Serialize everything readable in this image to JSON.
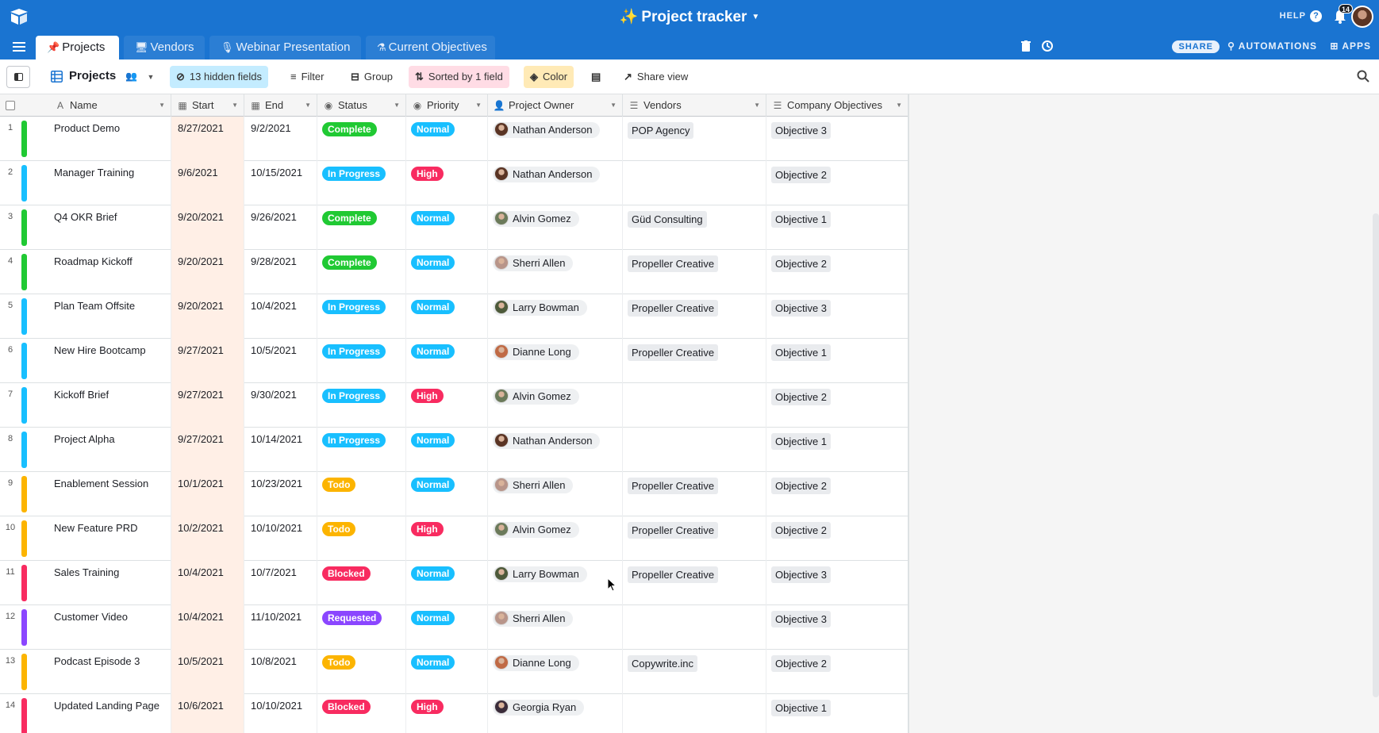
{
  "app": {
    "title": "Project tracker",
    "help_label": "HELP",
    "notification_count": "14"
  },
  "tabs": [
    {
      "label": "Projects",
      "icon": "pin-icon"
    },
    {
      "label": "Vendors",
      "icon": "computer-icon"
    },
    {
      "label": "Webinar Presentation",
      "icon": "microphone-icon"
    },
    {
      "label": "Current Objectives",
      "icon": "flask-icon"
    }
  ],
  "tabbar_right": {
    "share_label": "SHARE",
    "automations_label": "AUTOMATIONS",
    "apps_label": "APPS"
  },
  "viewbar": {
    "view_name": "Projects",
    "hidden_fields": "13 hidden fields",
    "filter": "Filter",
    "group": "Group",
    "sorted": "Sorted by 1 field",
    "color": "Color",
    "share_view": "Share view"
  },
  "colors": {
    "accent": "#1a74d1",
    "complete": "#20c933",
    "in_progress": "#18bfff",
    "todo": "#fcb400",
    "blocked": "#f82b60",
    "requested": "#8b46ff",
    "priority_normal": "#18bfff",
    "priority_high": "#f82b60"
  },
  "columns": [
    "Name",
    "Start",
    "End",
    "Status",
    "Priority",
    "Project Owner",
    "Vendors",
    "Company Objectives"
  ],
  "rows": [
    {
      "num": "1",
      "bar": "#20c933",
      "name": "Product Demo",
      "start": "8/27/2021",
      "end": "9/2/2021",
      "status": "Complete",
      "status_color": "#20c933",
      "priority": "Normal",
      "priority_color": "#18bfff",
      "owner": "Nathan Anderson",
      "avatar": "#5a3424",
      "vendor": "POP Agency",
      "objective": "Objective 3"
    },
    {
      "num": "2",
      "bar": "#18bfff",
      "name": "Manager Training",
      "start": "9/6/2021",
      "end": "10/15/2021",
      "status": "In Progress",
      "status_color": "#18bfff",
      "priority": "High",
      "priority_color": "#f82b60",
      "owner": "Nathan Anderson",
      "avatar": "#5a3424",
      "vendor": "",
      "objective": "Objective 2"
    },
    {
      "num": "3",
      "bar": "#20c933",
      "name": "Q4 OKR Brief",
      "start": "9/20/2021",
      "end": "9/26/2021",
      "status": "Complete",
      "status_color": "#20c933",
      "priority": "Normal",
      "priority_color": "#18bfff",
      "owner": "Alvin Gomez",
      "avatar": "#6b7a5a",
      "vendor": "Güd Consulting",
      "objective": "Objective 1"
    },
    {
      "num": "4",
      "bar": "#20c933",
      "name": "Roadmap Kickoff",
      "start": "9/20/2021",
      "end": "9/28/2021",
      "status": "Complete",
      "status_color": "#20c933",
      "priority": "Normal",
      "priority_color": "#18bfff",
      "owner": "Sherri Allen",
      "avatar": "#b8958a",
      "vendor": "Propeller Creative",
      "objective": "Objective 2"
    },
    {
      "num": "5",
      "bar": "#18bfff",
      "name": "Plan Team Offsite",
      "start": "9/20/2021",
      "end": "10/4/2021",
      "status": "In Progress",
      "status_color": "#18bfff",
      "priority": "Normal",
      "priority_color": "#18bfff",
      "owner": "Larry Bowman",
      "avatar": "#4d5a3a",
      "vendor": "Propeller Creative",
      "objective": "Objective 3"
    },
    {
      "num": "6",
      "bar": "#18bfff",
      "name": "New Hire Bootcamp",
      "start": "9/27/2021",
      "end": "10/5/2021",
      "status": "In Progress",
      "status_color": "#18bfff",
      "priority": "Normal",
      "priority_color": "#18bfff",
      "owner": "Dianne Long",
      "avatar": "#c06a45",
      "vendor": "Propeller Creative",
      "objective": "Objective 1"
    },
    {
      "num": "7",
      "bar": "#18bfff",
      "name": "Kickoff Brief",
      "start": "9/27/2021",
      "end": "9/30/2021",
      "status": "In Progress",
      "status_color": "#18bfff",
      "priority": "High",
      "priority_color": "#f82b60",
      "owner": "Alvin Gomez",
      "avatar": "#6b7a5a",
      "vendor": "",
      "objective": "Objective 2"
    },
    {
      "num": "8",
      "bar": "#18bfff",
      "name": "Project Alpha",
      "start": "9/27/2021",
      "end": "10/14/2021",
      "status": "In Progress",
      "status_color": "#18bfff",
      "priority": "Normal",
      "priority_color": "#18bfff",
      "owner": "Nathan Anderson",
      "avatar": "#5a3424",
      "vendor": "",
      "objective": "Objective 1"
    },
    {
      "num": "9",
      "bar": "#fcb400",
      "name": "Enablement Session",
      "start": "10/1/2021",
      "end": "10/23/2021",
      "status": "Todo",
      "status_color": "#fcb400",
      "priority": "Normal",
      "priority_color": "#18bfff",
      "owner": "Sherri Allen",
      "avatar": "#b8958a",
      "vendor": "Propeller Creative",
      "objective": "Objective 2"
    },
    {
      "num": "10",
      "bar": "#fcb400",
      "name": "New Feature PRD",
      "start": "10/2/2021",
      "end": "10/10/2021",
      "status": "Todo",
      "status_color": "#fcb400",
      "priority": "High",
      "priority_color": "#f82b60",
      "owner": "Alvin Gomez",
      "avatar": "#6b7a5a",
      "vendor": "Propeller Creative",
      "objective": "Objective 2"
    },
    {
      "num": "11",
      "bar": "#f82b60",
      "name": "Sales Training",
      "start": "10/4/2021",
      "end": "10/7/2021",
      "status": "Blocked",
      "status_color": "#f82b60",
      "priority": "Normal",
      "priority_color": "#18bfff",
      "owner": "Larry Bowman",
      "avatar": "#4d5a3a",
      "vendor": "Propeller Creative",
      "objective": "Objective 3"
    },
    {
      "num": "12",
      "bar": "#8b46ff",
      "name": "Customer Video",
      "start": "10/4/2021",
      "end": "11/10/2021",
      "status": "Requested",
      "status_color": "#8b46ff",
      "priority": "Normal",
      "priority_color": "#18bfff",
      "owner": "Sherri Allen",
      "avatar": "#b8958a",
      "vendor": "",
      "objective": "Objective 3"
    },
    {
      "num": "13",
      "bar": "#fcb400",
      "name": "Podcast Episode 3",
      "start": "10/5/2021",
      "end": "10/8/2021",
      "status": "Todo",
      "status_color": "#fcb400",
      "priority": "Normal",
      "priority_color": "#18bfff",
      "owner": "Dianne Long",
      "avatar": "#c06a45",
      "vendor": "Copywrite.inc",
      "objective": "Objective 2"
    },
    {
      "num": "14",
      "bar": "#f82b60",
      "name": "Updated Landing Page",
      "start": "10/6/2021",
      "end": "10/10/2021",
      "status": "Blocked",
      "status_color": "#f82b60",
      "priority": "High",
      "priority_color": "#f82b60",
      "owner": "Georgia Ryan",
      "avatar": "#3a2c3a",
      "vendor": "",
      "objective": "Objective 1"
    }
  ]
}
